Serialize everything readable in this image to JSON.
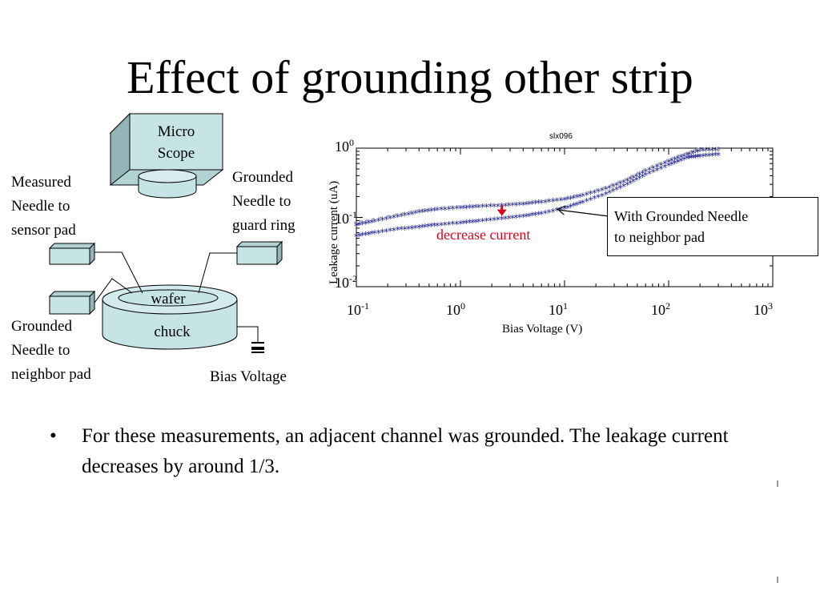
{
  "slide": {
    "title": "Effect of grounding other strip"
  },
  "diagram": {
    "microscope_label": "Micro\nScope",
    "measured_needle_label": "Measured\nNeedle to\nsensor pad",
    "grounded_guard_label": "Grounded\nNeedle to\nguard ring",
    "grounded_neighbor_label": "Grounded\nNeedle to\nneighbor pad",
    "wafer_label": "wafer",
    "chuck_label": "chuck",
    "bias_label": "Bias Voltage",
    "colors": {
      "stage_fill": "#c6e4e6",
      "scope_side": "#94b4b8"
    },
    "icons": [
      "microscope-box",
      "needle-block",
      "ground-symbol"
    ]
  },
  "chart_data": {
    "type": "scatter",
    "title": "slx096",
    "xlabel": "Bias Voltage (V)",
    "ylabel": "Leakage current (uA)",
    "x_scale": "log",
    "y_scale": "log",
    "xlim": [
      0.1,
      1000
    ],
    "ylim": [
      0.01,
      1
    ],
    "grid": false,
    "x_ticks": [
      {
        "base": "10",
        "exp": "-1"
      },
      {
        "base": "10",
        "exp": "0"
      },
      {
        "base": "10",
        "exp": "1"
      },
      {
        "base": "10",
        "exp": "2"
      },
      {
        "base": "10",
        "exp": "3"
      }
    ],
    "y_ticks": [
      {
        "base": "10",
        "exp": "0"
      },
      {
        "base": "10",
        "exp": "-1"
      },
      {
        "base": "10",
        "exp": "-2"
      }
    ],
    "series": [
      {
        "color": "#1a1a8c",
        "x": [
          0.1,
          0.15,
          0.25,
          0.4,
          0.6,
          1,
          1.5,
          2.5,
          4,
          6,
          10,
          15,
          25,
          40,
          60,
          100,
          150,
          200,
          300
        ],
        "y": [
          0.075,
          0.085,
          0.1,
          0.115,
          0.125,
          0.133,
          0.138,
          0.143,
          0.15,
          0.16,
          0.175,
          0.2,
          0.25,
          0.33,
          0.45,
          0.62,
          0.78,
          0.9,
          0.92
        ]
      },
      {
        "color": "#1a1a8c",
        "x": [
          0.1,
          0.15,
          0.25,
          0.4,
          0.6,
          1,
          1.5,
          2.5,
          4,
          6,
          10,
          15,
          25,
          40,
          60,
          100,
          150,
          200,
          300
        ],
        "y": [
          0.052,
          0.058,
          0.065,
          0.07,
          0.075,
          0.08,
          0.085,
          0.092,
          0.1,
          0.11,
          0.13,
          0.16,
          0.21,
          0.29,
          0.4,
          0.55,
          0.7,
          0.74,
          0.78
        ]
      },
      {
        "color": "#a8a8a8",
        "x": [
          0.1,
          0.15,
          0.25,
          0.4,
          0.6,
          1,
          1.5,
          2.5,
          4,
          6,
          10,
          15,
          25,
          40,
          60,
          100,
          150,
          200,
          300
        ],
        "y": [
          0.08,
          0.09,
          0.105,
          0.12,
          0.13,
          0.138,
          0.142,
          0.148,
          0.155,
          0.165,
          0.18,
          0.205,
          0.26,
          0.34,
          0.47,
          0.64,
          0.8,
          0.93,
          0.95
        ]
      }
    ],
    "annotations": {
      "inset": "With Grounded Needle\nto neighbor pad",
      "decrease": "decrease current",
      "arrow_color": "#e0001b"
    }
  },
  "bullets": [
    "For these measurements, an adjacent channel was grounded. The leakage current decreases by around 1/3."
  ],
  "bullet_symbol": "•"
}
